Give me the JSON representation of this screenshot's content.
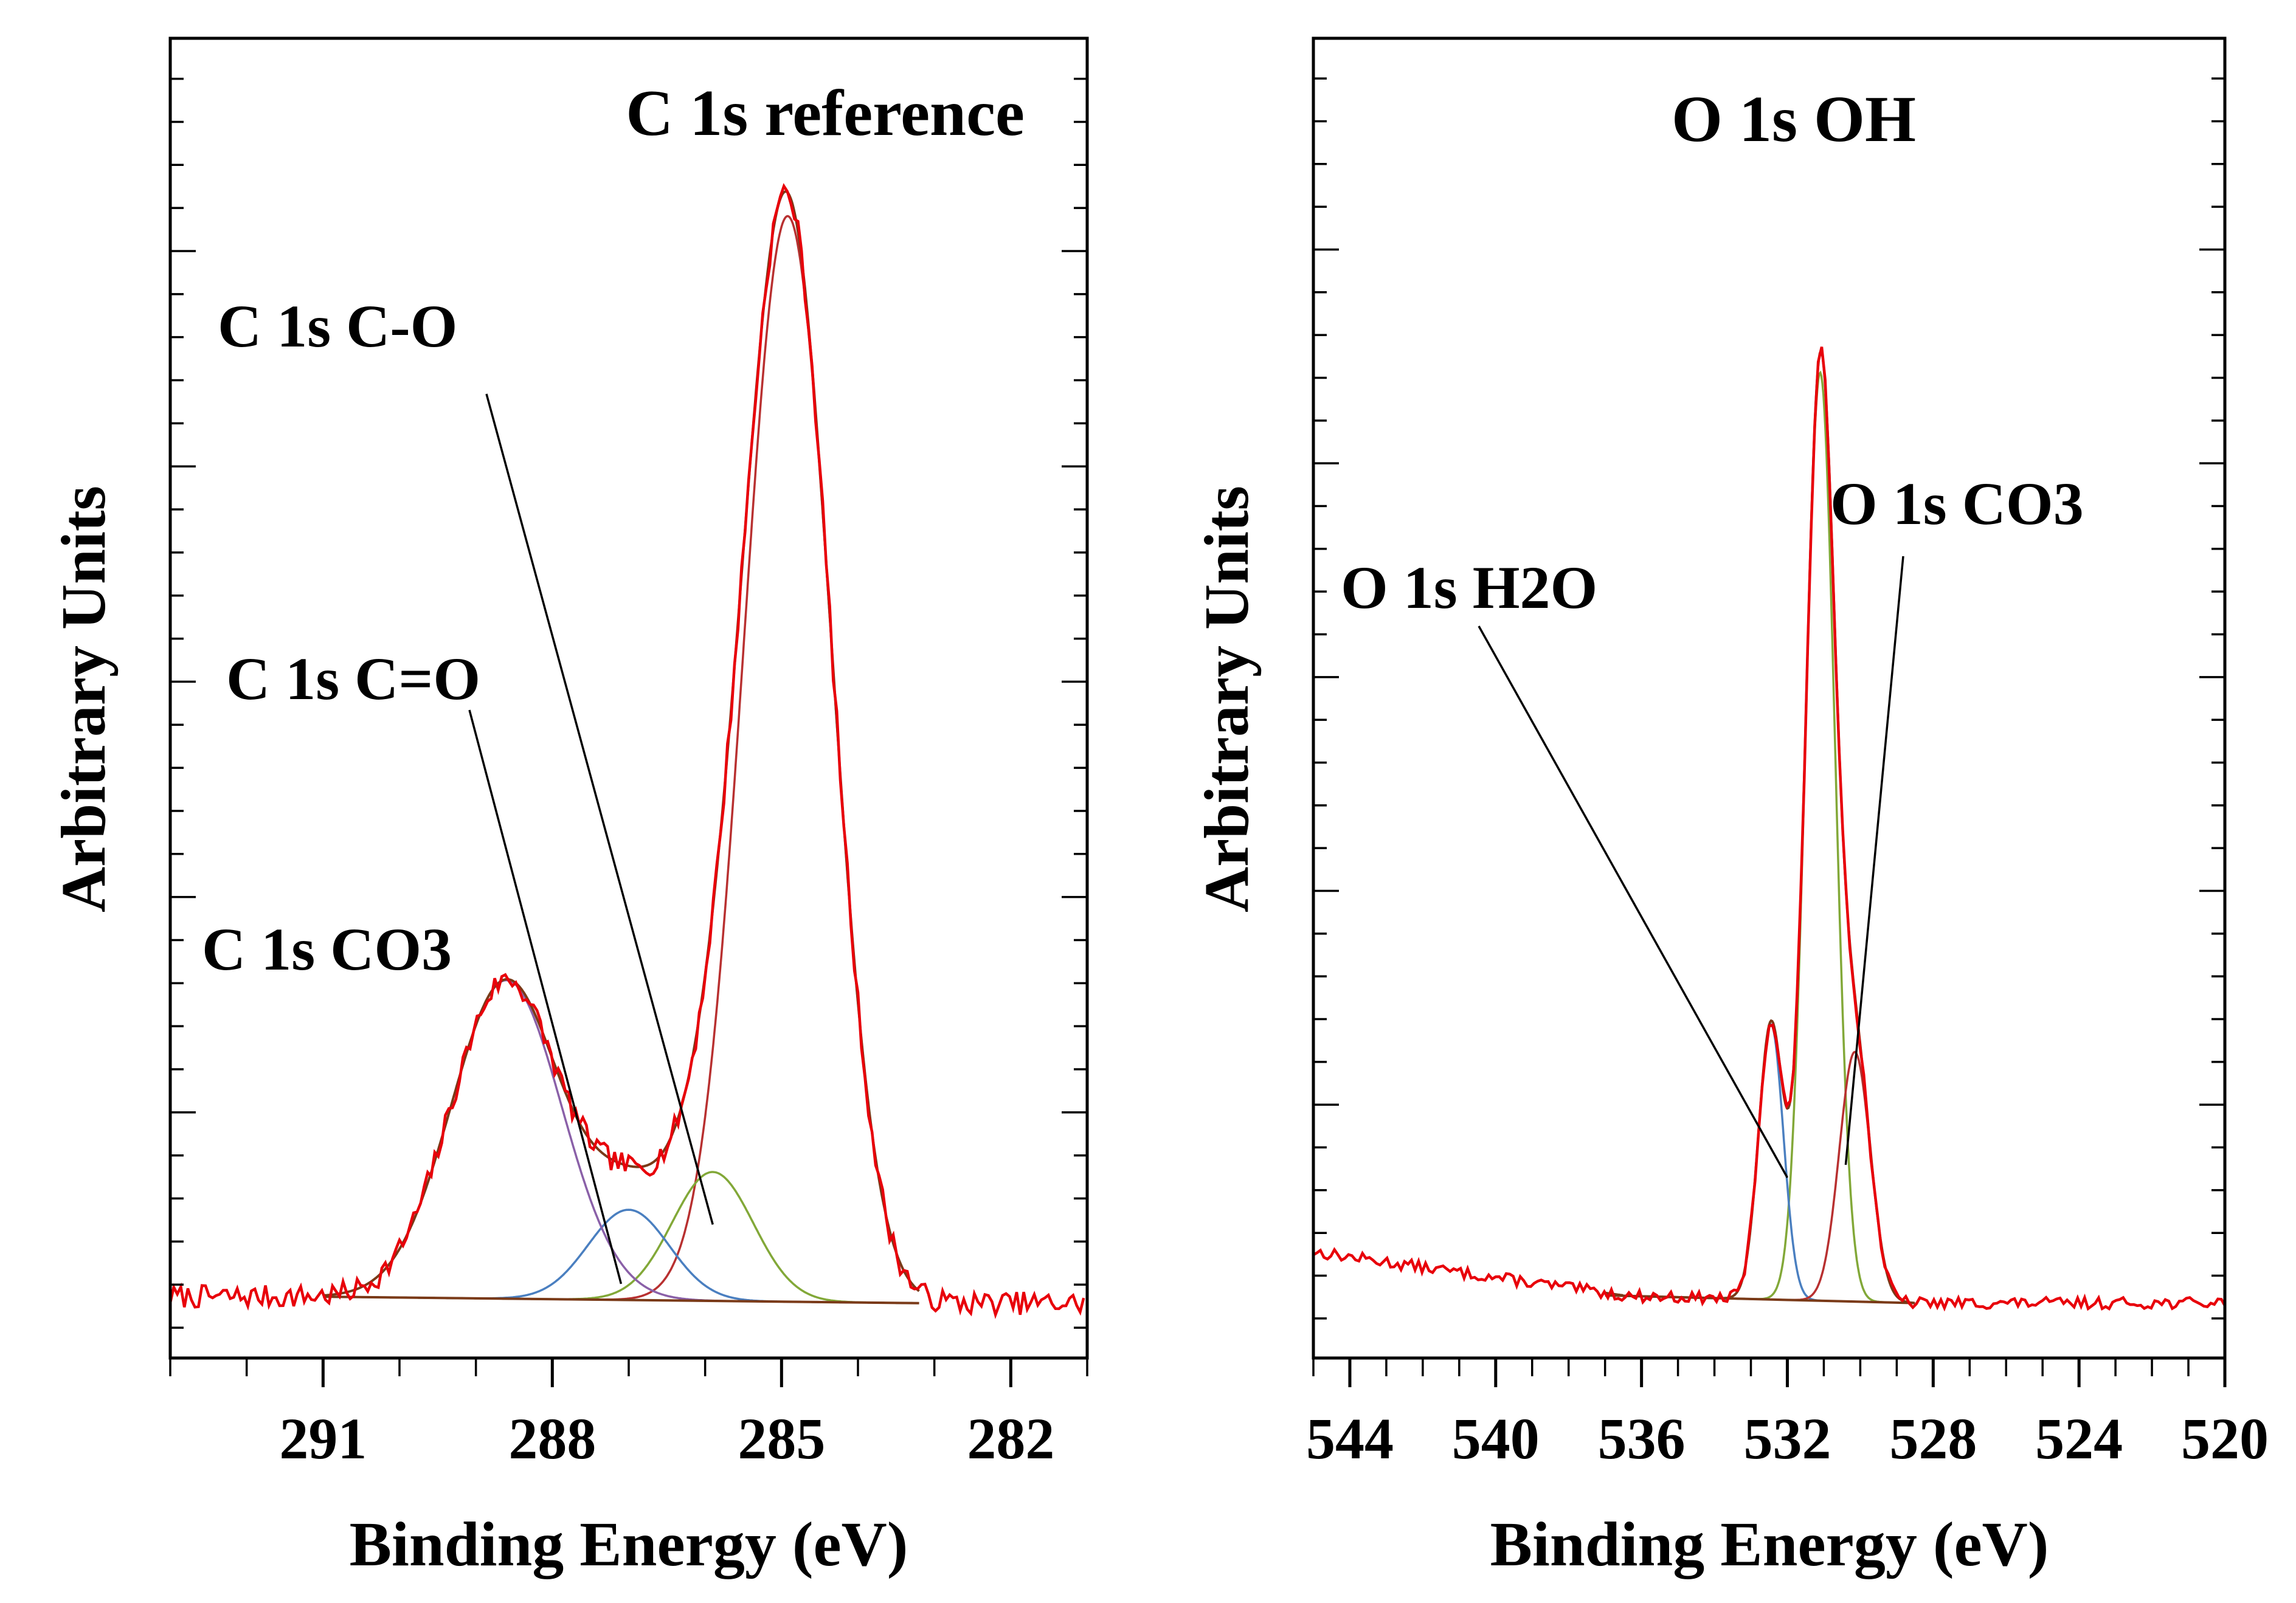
{
  "chart_data": [
    {
      "type": "line",
      "panel": "left",
      "title": "C 1s reference",
      "xlabel": "Binding Energy (eV)",
      "ylabel": "Arbitrary Units",
      "x_reversed": true,
      "xlim": [
        293.0,
        281.0
      ],
      "ylim": [
        0,
        100
      ],
      "x_ticks": [
        291,
        288,
        285,
        282
      ],
      "x_tick_labels": [
        "291",
        "288",
        "285",
        "282"
      ],
      "x_minor_step": 1,
      "y_major_step": 16.7,
      "y_minor_per_major": 5,
      "grid": false,
      "baseline_start": 2.4,
      "baseline_end": 1.9,
      "baseline_xrange": [
        291.0,
        283.2
      ],
      "components": [
        {
          "name": "C 1s reference",
          "center": 284.92,
          "fwhm": 1.35,
          "height": 84.2,
          "color": "#b83030",
          "label_pos": null
        },
        {
          "name": "C 1s C-O",
          "center": 285.9,
          "fwhm": 1.25,
          "height": 10.0,
          "color": "#82a838",
          "label": "C 1s C-O",
          "pointer_x": 285.9,
          "pointer_y": 8.0
        },
        {
          "name": "C 1s C=O",
          "center": 287.0,
          "fwhm": 1.25,
          "height": 7.0,
          "color": "#4a7fc0",
          "label": "C 1s C=O",
          "pointer_x": 287.1,
          "pointer_y": 3.4
        },
        {
          "name": "C 1s CO3",
          "center": 288.6,
          "fwhm": 1.7,
          "height": 24.7,
          "color": "#8a60a8",
          "label": "C 1s CO3",
          "pointer_x": null,
          "pointer_y": null
        }
      ],
      "series": [
        {
          "name": "measured",
          "color": "#e8000a",
          "noise": 0.9,
          "noise_seed": 7
        },
        {
          "name": "envelope",
          "color": "#7a3a18"
        }
      ]
    },
    {
      "type": "line",
      "panel": "right",
      "title": "O 1s OH",
      "xlabel": "Binding Energy (eV)",
      "ylabel": "Arbitrary Units",
      "x_reversed": true,
      "xlim": [
        545.0,
        520.0
      ],
      "ylim": [
        0,
        100
      ],
      "x_ticks": [
        544,
        540,
        536,
        532,
        528,
        524,
        520
      ],
      "x_tick_labels": [
        "544",
        "540",
        "536",
        "532",
        "528",
        "524",
        "520"
      ],
      "x_minor_step": 1,
      "y_major_step": 16.7,
      "y_minor_per_major": 5,
      "grid": false,
      "baseline_start": 1.8,
      "baseline_end": 1.2,
      "baseline_xrange": [
        537.0,
        528.5
      ],
      "components": [
        {
          "name": "O 1s OH",
          "center": 531.1,
          "fwhm": 0.95,
          "height": 72.5,
          "color": "#82a838",
          "label_pos": null
        },
        {
          "name": "O 1s H2O",
          "center": 532.45,
          "fwhm": 0.8,
          "height": 21.5,
          "color": "#4a7fc0",
          "label": "O 1s H2O",
          "pointer_x": 532.0,
          "pointer_y": 11.0
        },
        {
          "name": "O 1s CO3",
          "center": 530.15,
          "fwhm": 1.0,
          "height": 19.5,
          "color": "#b83030",
          "label": "O 1s CO3",
          "pointer_x": 530.4,
          "pointer_y": 12.0
        }
      ],
      "pre_edge": {
        "start_x": 545.0,
        "start_y": 5.2,
        "end_x": 536.5,
        "end_y": 1.8
      },
      "series": [
        {
          "name": "measured",
          "color": "#e8000a",
          "noise": 0.45,
          "noise_seed": 13
        },
        {
          "name": "envelope",
          "color": "#7a3a18"
        }
      ]
    }
  ]
}
